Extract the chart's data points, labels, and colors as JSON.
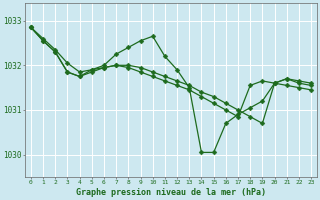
{
  "bg_color": "#cde8f0",
  "grid_color": "#ffffff",
  "line_color": "#1e6b1e",
  "xlabel": "Graphe pression niveau de la mer (hPa)",
  "xlim": [
    -0.5,
    23.5
  ],
  "ylim": [
    1029.5,
    1033.4
  ],
  "yticks": [
    1030,
    1031,
    1032,
    1033
  ],
  "xticks": [
    0,
    1,
    2,
    3,
    4,
    5,
    6,
    7,
    8,
    9,
    10,
    11,
    12,
    13,
    14,
    15,
    16,
    17,
    18,
    19,
    20,
    21,
    22,
    23
  ],
  "series_spike_x": [
    0,
    1,
    2,
    3,
    4,
    5,
    6,
    7,
    8,
    9,
    10,
    11,
    12,
    13,
    14,
    15,
    16,
    17,
    18,
    19,
    20,
    21,
    22,
    23
  ],
  "series_spike_y": [
    1032.85,
    1032.55,
    1032.3,
    1031.85,
    1031.75,
    1031.9,
    1032.0,
    1032.25,
    1032.4,
    1032.55,
    1032.65,
    1032.2,
    1031.9,
    1031.5,
    1030.05,
    1030.05,
    1030.7,
    1030.9,
    1031.05,
    1031.2,
    1031.6,
    1031.7,
    1031.65,
    1031.6
  ],
  "series_flat1_x": [
    0,
    1,
    2,
    3,
    4,
    5,
    6,
    7,
    8,
    9,
    10,
    11,
    12,
    13,
    14,
    15,
    16,
    17,
    18,
    19,
    20,
    21,
    22,
    23
  ],
  "series_flat1_y": [
    1032.85,
    1032.6,
    1032.35,
    1032.05,
    1031.85,
    1031.9,
    1031.95,
    1032.0,
    1032.0,
    1031.95,
    1031.85,
    1031.75,
    1031.65,
    1031.55,
    1031.4,
    1031.3,
    1031.15,
    1031.0,
    1030.85,
    1030.7,
    1031.6,
    1031.7,
    1031.6,
    1031.55
  ],
  "series_flat2_x": [
    0,
    1,
    2,
    3,
    4,
    5,
    6,
    7,
    8,
    9,
    10,
    11,
    12,
    13,
    14,
    15,
    16,
    17,
    18,
    19,
    20,
    21,
    22,
    23
  ],
  "series_flat2_y": [
    1032.85,
    1032.55,
    1032.3,
    1031.85,
    1031.75,
    1031.85,
    1031.95,
    1032.0,
    1031.95,
    1031.85,
    1031.75,
    1031.65,
    1031.55,
    1031.45,
    1031.3,
    1031.15,
    1031.0,
    1030.85,
    1031.55,
    1031.65,
    1031.6,
    1031.55,
    1031.5,
    1031.45
  ]
}
